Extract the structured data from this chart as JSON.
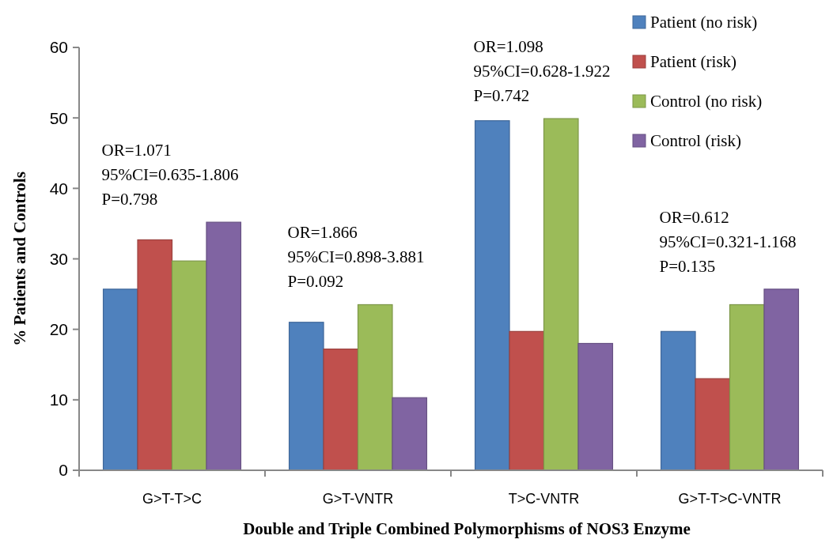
{
  "chart_data": {
    "type": "bar",
    "xlabel": "Double and Triple Combined Polymorphisms of NOS3 Enzyme",
    "ylabel": "% Patients and Controls",
    "categories": [
      "G>T-T>C",
      "G>T-VNTR",
      "T>C-VNTR",
      "G>T-T>C-VNTR"
    ],
    "series": [
      {
        "name": "Patient (no risk)",
        "color": "#4f81bd",
        "values": [
          25.7,
          21.0,
          49.6,
          19.7
        ]
      },
      {
        "name": "Patient (risk)",
        "color": "#c0504d",
        "values": [
          32.7,
          17.2,
          19.7,
          13.0
        ]
      },
      {
        "name": "Control (no risk)",
        "color": "#9bbb59",
        "values": [
          29.7,
          23.5,
          49.9,
          23.5
        ]
      },
      {
        "name": "Control (risk)",
        "color": "#8064a2",
        "values": [
          35.2,
          10.3,
          18.0,
          25.7
        ]
      }
    ],
    "ylim": [
      0,
      60
    ],
    "yticks": [
      0,
      10,
      20,
      30,
      40,
      50,
      60
    ],
    "grid": false,
    "legend": "top right",
    "annotations": [
      "OR=1.071\n95%CI=0.635-1.806\nP=0.798",
      "OR=1.866\n95%CI=0.898-3.881\nP=0.092",
      "OR=1.098\n95%CI=0.628-1.922\nP=0.742",
      "OR=0.612\n95%CI=0.321-1.168\nP=0.135"
    ]
  }
}
